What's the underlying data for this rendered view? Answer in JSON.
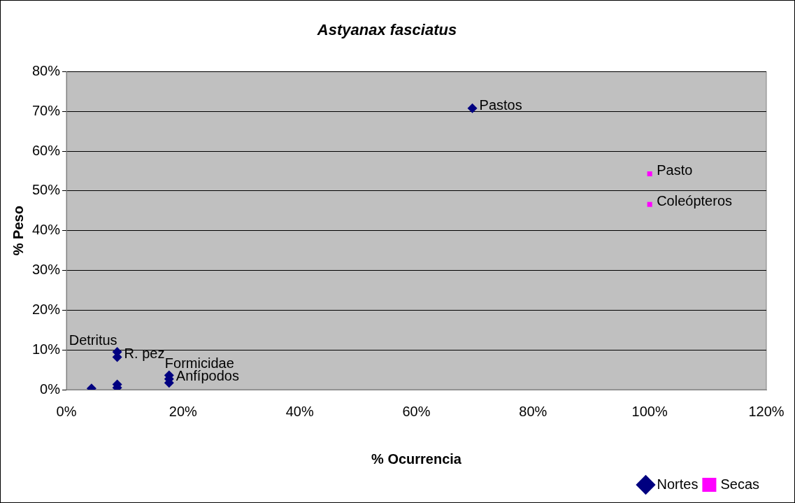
{
  "chart_data": {
    "type": "scatter",
    "title": "Astyanax fasciatus",
    "xlabel": "% Ocurrencia",
    "ylabel": "% Peso",
    "series": [
      {
        "name": "Nortes",
        "color": "#000080",
        "marker": "diamond",
        "x": [
          4.3,
          8.7,
          8.7,
          8.7,
          8.7,
          17.6,
          17.6,
          17.6,
          69.6
        ],
        "values": [
          0.3,
          9.5,
          8.2,
          1.3,
          0.5,
          3.6,
          2.7,
          1.7,
          70.8
        ]
      },
      {
        "name": "Secas",
        "color": "#ff00ff",
        "marker": "square",
        "x": [
          100,
          100
        ],
        "values": [
          54.3,
          46.6
        ]
      }
    ],
    "annotations": [
      {
        "text": "Detritus",
        "x": 8.7,
        "y": 9.5
      },
      {
        "text": "R. pez",
        "x": 8.7,
        "y": 8.2
      },
      {
        "text": "Formicidae",
        "x": 17.6,
        "y": 3.6
      },
      {
        "text": "Anfípodos",
        "x": 17.6,
        "y": 2.7
      },
      {
        "text": "Pastos",
        "x": 69.6,
        "y": 70.8
      },
      {
        "text": "Pasto",
        "x": 100,
        "y": 54.3
      },
      {
        "text": "Coleópteros",
        "x": 100,
        "y": 46.6
      }
    ],
    "xlim": [
      0,
      120
    ],
    "xticks": [
      {
        "value": 0,
        "label": "0%"
      },
      {
        "value": 20,
        "label": "20%"
      },
      {
        "value": 40,
        "label": "40%"
      },
      {
        "value": 60,
        "label": "60%"
      },
      {
        "value": 80,
        "label": "80%"
      },
      {
        "value": 100,
        "label": "100%"
      },
      {
        "value": 120,
        "label": "120%"
      }
    ],
    "ylim": [
      0,
      80
    ],
    "yticks": [
      {
        "value": 0,
        "label": "0%"
      },
      {
        "value": 10,
        "label": "10%"
      },
      {
        "value": 20,
        "label": "20%"
      },
      {
        "value": 30,
        "label": "30%"
      },
      {
        "value": 40,
        "label": "40%"
      },
      {
        "value": 50,
        "label": "50%"
      },
      {
        "value": 60,
        "label": "60%"
      },
      {
        "value": 70,
        "label": "70%"
      },
      {
        "value": 80,
        "label": "80%"
      }
    ],
    "grid": "y",
    "legend": "bottom right"
  }
}
